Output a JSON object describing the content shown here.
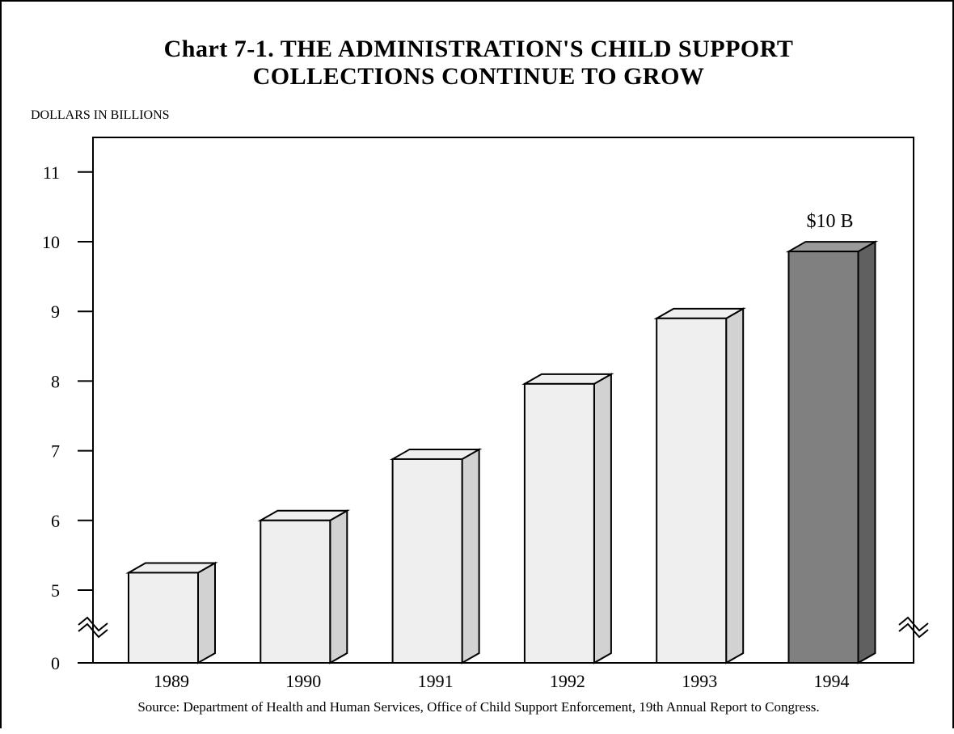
{
  "chart_data": {
    "type": "bar",
    "title_line1": "Chart 7-1. THE ADMINISTRATION'S CHILD SUPPORT",
    "title_line2": "COLLECTIONS CONTINUE TO GROW",
    "ylabel": "DOLLARS IN BILLIONS",
    "xlabel": "",
    "categories": [
      "1989",
      "1990",
      "1991",
      "1992",
      "1993",
      "1994"
    ],
    "values": [
      5.25,
      6.0,
      6.88,
      7.96,
      8.9,
      9.86
    ],
    "yticks": [
      "0",
      "5",
      "6",
      "7",
      "8",
      "9",
      "10",
      "11"
    ],
    "ylim": [
      4.0,
      11.7
    ],
    "axis_break": true,
    "bar_color": "#efefef",
    "bar_side_color": "#d2d2d2",
    "highlight_category": "1994",
    "highlight_color": "#808080",
    "highlight_side_color": "#606060",
    "highlight_top_color": "#9a9a9a",
    "data_label": "$10 B",
    "source": "Source: Department of Health and Human Services, Office of Child Support Enforcement, 19th Annual Report to Congress."
  }
}
